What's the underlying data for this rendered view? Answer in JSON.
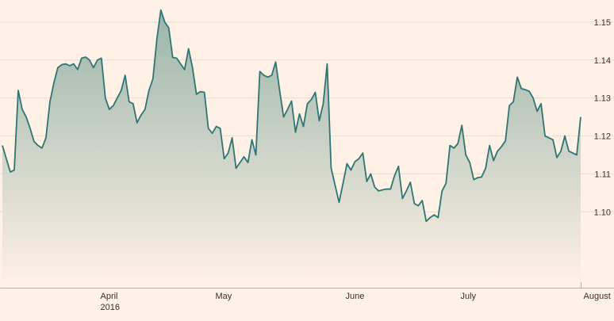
{
  "colors": {
    "background": "#FFF1E5",
    "line": "#2E7575",
    "area_top": "#9AB5AA",
    "area_bottom": "#FFF1E5",
    "gridline": "#E9DECF",
    "axis": "#B8AFA6"
  },
  "chart_data": {
    "type": "area",
    "title": "",
    "xlabel": "",
    "ylabel": "",
    "ylim": [
      1.08,
      1.155
    ],
    "y_ticks": [
      "1.10",
      "1.11",
      "1.12",
      "1.13",
      "1.14",
      "1.15"
    ],
    "x_ticks": [
      {
        "label": "April",
        "sublabel": "2016",
        "index": 24
      },
      {
        "label": "May",
        "sublabel": "",
        "index": 53
      },
      {
        "label": "June",
        "sublabel": "",
        "index": 86
      },
      {
        "label": "July",
        "sublabel": "",
        "index": 115
      },
      {
        "label": "August",
        "sublabel": "",
        "index": 146
      }
    ],
    "grid": true,
    "legend": "none",
    "series": [
      {
        "values": [
          1.1175,
          1.114,
          1.1105,
          1.111,
          1.132,
          1.127,
          1.125,
          1.122,
          1.1185,
          1.1175,
          1.1168,
          1.1195,
          1.129,
          1.134,
          1.138,
          1.1388,
          1.139,
          1.1385,
          1.139,
          1.1375,
          1.1405,
          1.1408,
          1.14,
          1.138,
          1.14,
          1.1405,
          1.13,
          1.127,
          1.128,
          1.13,
          1.132,
          1.136,
          1.129,
          1.1285,
          1.1235,
          1.1255,
          1.127,
          1.132,
          1.135,
          1.1455,
          1.1532,
          1.15,
          1.1485,
          1.1407,
          1.1405,
          1.139,
          1.1375,
          1.143,
          1.138,
          1.131,
          1.1317,
          1.1315,
          1.122,
          1.1207,
          1.1225,
          1.122,
          1.114,
          1.1155,
          1.1195,
          1.1115,
          1.113,
          1.1145,
          1.113,
          1.119,
          1.115,
          1.137,
          1.136,
          1.1355,
          1.136,
          1.1395,
          1.132,
          1.125,
          1.127,
          1.1292,
          1.121,
          1.1258,
          1.1225,
          1.1285,
          1.1296,
          1.1315,
          1.124,
          1.1285,
          1.139,
          1.1115,
          1.107,
          1.1025,
          1.1075,
          1.1127,
          1.111,
          1.1132,
          1.114,
          1.1155,
          1.108,
          1.11,
          1.1065,
          1.1055,
          1.1058,
          1.106,
          1.106,
          1.1095,
          1.112,
          1.1035,
          1.1055,
          1.1078,
          1.1022,
          1.1016,
          1.103,
          1.0975,
          1.0985,
          1.0992,
          1.0985,
          1.1055,
          1.1075,
          1.1175,
          1.1168,
          1.118,
          1.1228,
          1.115,
          1.113,
          1.1085,
          1.109,
          1.1092,
          1.1115,
          1.1175,
          1.1135,
          1.116,
          1.1172,
          1.1187,
          1.128,
          1.129,
          1.1355,
          1.1325,
          1.1322,
          1.1318,
          1.13,
          1.1265,
          1.1285,
          1.12,
          1.1195,
          1.119,
          1.1143,
          1.116,
          1.12,
          1.116,
          1.1155,
          1.115,
          1.125
        ]
      }
    ]
  }
}
